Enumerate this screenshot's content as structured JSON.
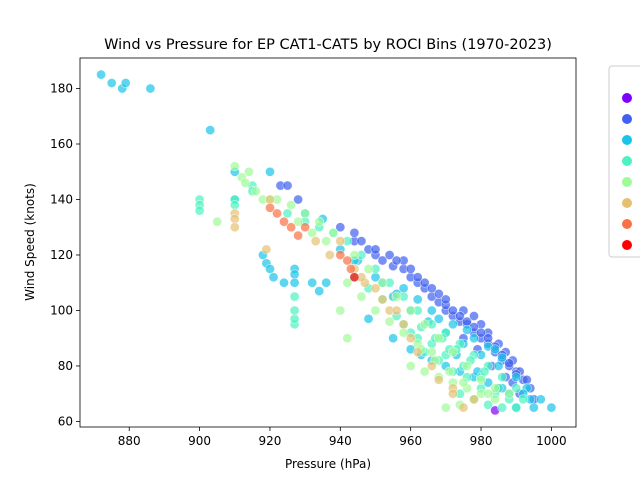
{
  "chart_data": {
    "type": "scatter",
    "title": "Wind vs Pressure for EP CAT1-CAT5 by ROCI Bins (1970-2023)",
    "xlabel": "Pressure (hPa)",
    "ylabel": "Wind Speed (knots)",
    "xlim": [
      866,
      1007
    ],
    "ylim": [
      58,
      191
    ],
    "xticks": [
      880,
      900,
      920,
      940,
      960,
      980,
      1000
    ],
    "yticks": [
      60,
      80,
      100,
      120,
      140,
      160,
      180
    ],
    "grid": false,
    "legend_position": "right (clipped)",
    "series": [
      {
        "color": "#7f00ff",
        "points": [
          [
            984,
            64
          ]
        ]
      },
      {
        "color": "#3f60f0",
        "points": [
          [
            923,
            145
          ],
          [
            925,
            145
          ],
          [
            928,
            140
          ],
          [
            940,
            130
          ],
          [
            944,
            125
          ],
          [
            948,
            122
          ],
          [
            950,
            120
          ],
          [
            952,
            118
          ],
          [
            955,
            116
          ],
          [
            958,
            115
          ],
          [
            960,
            112
          ],
          [
            962,
            110
          ],
          [
            964,
            108
          ],
          [
            966,
            105
          ],
          [
            968,
            103
          ],
          [
            970,
            100
          ],
          [
            972,
            98
          ],
          [
            974,
            96
          ],
          [
            976,
            95
          ],
          [
            978,
            92
          ],
          [
            980,
            90
          ],
          [
            982,
            88
          ],
          [
            984,
            85
          ],
          [
            986,
            82
          ],
          [
            988,
            80
          ],
          [
            990,
            78
          ],
          [
            992,
            75
          ],
          [
            994,
            72
          ],
          [
            975,
            100
          ],
          [
            978,
            98
          ],
          [
            980,
            95
          ],
          [
            982,
            92
          ],
          [
            985,
            88
          ],
          [
            987,
            85
          ],
          [
            989,
            82
          ],
          [
            991,
            78
          ],
          [
            993,
            75
          ],
          [
            970,
            102
          ],
          [
            972,
            100
          ],
          [
            974,
            98
          ],
          [
            976,
            96
          ],
          [
            978,
            94
          ],
          [
            980,
            92
          ],
          [
            982,
            90
          ],
          [
            984,
            87
          ],
          [
            986,
            84
          ],
          [
            988,
            81
          ],
          [
            990,
            77
          ],
          [
            966,
            108
          ],
          [
            964,
            110
          ],
          [
            962,
            112
          ],
          [
            958,
            118
          ],
          [
            954,
            120
          ],
          [
            950,
            122
          ],
          [
            946,
            125
          ],
          [
            944,
            128
          ],
          [
            960,
            115
          ],
          [
            956,
            118
          ],
          [
            968,
            106
          ],
          [
            970,
            104
          ],
          [
            975,
            90
          ],
          [
            979,
            86
          ],
          [
            983,
            80
          ],
          [
            987,
            76
          ],
          [
            991,
            70
          ],
          [
            995,
            68
          ],
          [
            985,
            72
          ],
          [
            989,
            74
          ]
        ]
      },
      {
        "color": "#19c4e8",
        "points": [
          [
            872,
            185
          ],
          [
            875,
            182
          ],
          [
            878,
            180
          ],
          [
            879,
            182
          ],
          [
            886,
            180
          ],
          [
            903,
            165
          ],
          [
            910,
            150
          ],
          [
            910,
            140
          ],
          [
            918,
            120
          ],
          [
            919,
            117
          ],
          [
            920,
            115
          ],
          [
            921,
            112
          ],
          [
            924,
            110
          ],
          [
            927,
            115
          ],
          [
            927,
            113
          ],
          [
            927,
            110
          ],
          [
            932,
            110
          ],
          [
            934,
            107
          ],
          [
            936,
            110
          ],
          [
            920,
            150
          ],
          [
            930,
            135
          ],
          [
            935,
            133
          ],
          [
            945,
            118
          ],
          [
            950,
            112
          ],
          [
            955,
            105
          ],
          [
            960,
            100
          ],
          [
            965,
            96
          ],
          [
            970,
            92
          ],
          [
            975,
            88
          ],
          [
            980,
            84
          ],
          [
            985,
            80
          ],
          [
            990,
            76
          ],
          [
            993,
            72
          ],
          [
            997,
            68
          ],
          [
            1000,
            65
          ],
          [
            995,
            65
          ],
          [
            990,
            65
          ],
          [
            948,
            97
          ],
          [
            955,
            90
          ],
          [
            960,
            86
          ],
          [
            963,
            84
          ],
          [
            966,
            82
          ],
          [
            970,
            80
          ],
          [
            974,
            78
          ],
          [
            978,
            76
          ],
          [
            982,
            74
          ],
          [
            986,
            72
          ],
          [
            988,
            70
          ],
          [
            958,
            108
          ],
          [
            962,
            104
          ],
          [
            966,
            100
          ],
          [
            972,
            95
          ],
          [
            976,
            93
          ],
          [
            982,
            87
          ],
          [
            986,
            83
          ],
          [
            940,
            122
          ],
          [
            944,
            118
          ],
          [
            952,
            110
          ],
          [
            956,
            106
          ],
          [
            968,
            97
          ],
          [
            978,
            90
          ],
          [
            984,
            86
          ],
          [
            992,
            70
          ],
          [
            994,
            68
          ],
          [
            979,
            78
          ],
          [
            973,
            84
          ]
        ]
      },
      {
        "color": "#4df2c0",
        "points": [
          [
            900,
            140
          ],
          [
            900,
            138
          ],
          [
            900,
            136
          ],
          [
            910,
            140
          ],
          [
            910,
            138
          ],
          [
            915,
            145
          ],
          [
            915,
            143
          ],
          [
            925,
            135
          ],
          [
            927,
            95
          ],
          [
            927,
            97
          ],
          [
            927,
            100
          ],
          [
            927,
            105
          ],
          [
            930,
            132
          ],
          [
            934,
            130
          ],
          [
            938,
            128
          ],
          [
            942,
            125
          ],
          [
            946,
            120
          ],
          [
            950,
            115
          ],
          [
            954,
            110
          ],
          [
            958,
            105
          ],
          [
            962,
            100
          ],
          [
            966,
            95
          ],
          [
            970,
            92
          ],
          [
            974,
            88
          ],
          [
            978,
            84
          ],
          [
            982,
            80
          ],
          [
            986,
            76
          ],
          [
            990,
            72
          ],
          [
            992,
            68
          ],
          [
            964,
            85
          ],
          [
            968,
            82
          ],
          [
            972,
            78
          ],
          [
            976,
            76
          ],
          [
            980,
            72
          ],
          [
            984,
            70
          ],
          [
            988,
            68
          ],
          [
            974,
            70
          ],
          [
            978,
            68
          ],
          [
            982,
            66
          ],
          [
            986,
            65
          ],
          [
            990,
            65
          ],
          [
            960,
            92
          ],
          [
            956,
            98
          ],
          [
            952,
            104
          ],
          [
            948,
            108
          ],
          [
            944,
            112
          ],
          [
            966,
            88
          ],
          [
            970,
            84
          ],
          [
            975,
            80
          ],
          [
            980,
            76
          ],
          [
            985,
            72
          ],
          [
            962,
            90
          ],
          [
            958,
            95
          ],
          [
            969,
            90
          ],
          [
            973,
            86
          ],
          [
            977,
            82
          ],
          [
            981,
            78
          ],
          [
            963,
            94
          ],
          [
            967,
            90
          ],
          [
            971,
            86
          ]
        ]
      },
      {
        "color": "#9ffb98",
        "points": [
          [
            905,
            132
          ],
          [
            910,
            152
          ],
          [
            912,
            148
          ],
          [
            913,
            146
          ],
          [
            914,
            150
          ],
          [
            916,
            143
          ],
          [
            918,
            140
          ],
          [
            920,
            140
          ],
          [
            922,
            140
          ],
          [
            926,
            138
          ],
          [
            930,
            135
          ],
          [
            934,
            132
          ],
          [
            938,
            128
          ],
          [
            940,
            100
          ],
          [
            942,
            90
          ],
          [
            944,
            120
          ],
          [
            948,
            115
          ],
          [
            952,
            110
          ],
          [
            956,
            105
          ],
          [
            960,
            100
          ],
          [
            964,
            95
          ],
          [
            968,
            90
          ],
          [
            972,
            85
          ],
          [
            976,
            80
          ],
          [
            980,
            75
          ],
          [
            984,
            72
          ],
          [
            988,
            70
          ],
          [
            960,
            80
          ],
          [
            964,
            78
          ],
          [
            968,
            76
          ],
          [
            972,
            74
          ],
          [
            976,
            72
          ],
          [
            980,
            70
          ],
          [
            984,
            68
          ],
          [
            970,
            65
          ],
          [
            974,
            66
          ],
          [
            978,
            68
          ],
          [
            982,
            70
          ],
          [
            966,
            85
          ],
          [
            962,
            88
          ],
          [
            958,
            92
          ],
          [
            954,
            96
          ],
          [
            950,
            100
          ],
          [
            946,
            105
          ],
          [
            942,
            110
          ],
          [
            936,
            125
          ],
          [
            932,
            128
          ],
          [
            928,
            132
          ],
          [
            975,
            74
          ],
          [
            971,
            78
          ],
          [
            967,
            82
          ],
          [
            963,
            86
          ]
        ]
      },
      {
        "color": "#e6c072",
        "points": [
          [
            910,
            135
          ],
          [
            910,
            133
          ],
          [
            910,
            130
          ],
          [
            919,
            122
          ],
          [
            920,
            140
          ],
          [
            933,
            125
          ],
          [
            937,
            120
          ],
          [
            940,
            125
          ],
          [
            944,
            115
          ],
          [
            947,
            110
          ],
          [
            950,
            108
          ],
          [
            954,
            100
          ],
          [
            958,
            95
          ],
          [
            962,
            85
          ],
          [
            966,
            80
          ],
          [
            968,
            75
          ],
          [
            972,
            72
          ],
          [
            975,
            65
          ],
          [
            978,
            68
          ],
          [
            972,
            70
          ],
          [
            960,
            90
          ],
          [
            956,
            100
          ],
          [
            946,
            112
          ],
          [
            952,
            104
          ]
        ]
      },
      {
        "color": "#fb7044",
        "points": [
          [
            920,
            137
          ],
          [
            922,
            135
          ],
          [
            924,
            132
          ],
          [
            926,
            130
          ],
          [
            928,
            127
          ],
          [
            930,
            130
          ],
          [
            940,
            120
          ],
          [
            942,
            118
          ],
          [
            943,
            115
          ]
        ]
      },
      {
        "color": "#ff0000",
        "points": [
          [
            944,
            112
          ]
        ]
      }
    ]
  }
}
